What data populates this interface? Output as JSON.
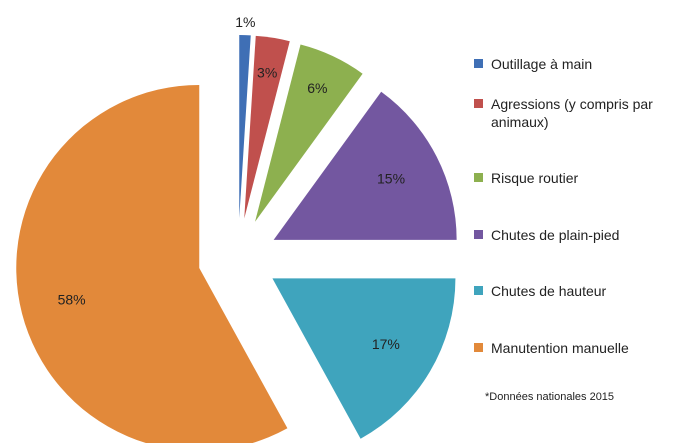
{
  "chart_data": {
    "type": "pie",
    "categories": [
      "Outillage à main",
      "Agressions (y compris par animaux)",
      "Risque routier",
      "Chutes de plain-pied",
      "Chutes de hauteur",
      "Manutention manuelle"
    ],
    "values": [
      1,
      3,
      6,
      15,
      17,
      58
    ],
    "value_labels": [
      "1%",
      "3%",
      "6%",
      "15%",
      "17%",
      "58%"
    ],
    "colors": [
      "#3f6fb5",
      "#c0504d",
      "#8db04f",
      "#7357a0",
      "#3fa4bd",
      "#e2893a"
    ],
    "legend": "right",
    "annotation": "*Données nationales 2015"
  }
}
